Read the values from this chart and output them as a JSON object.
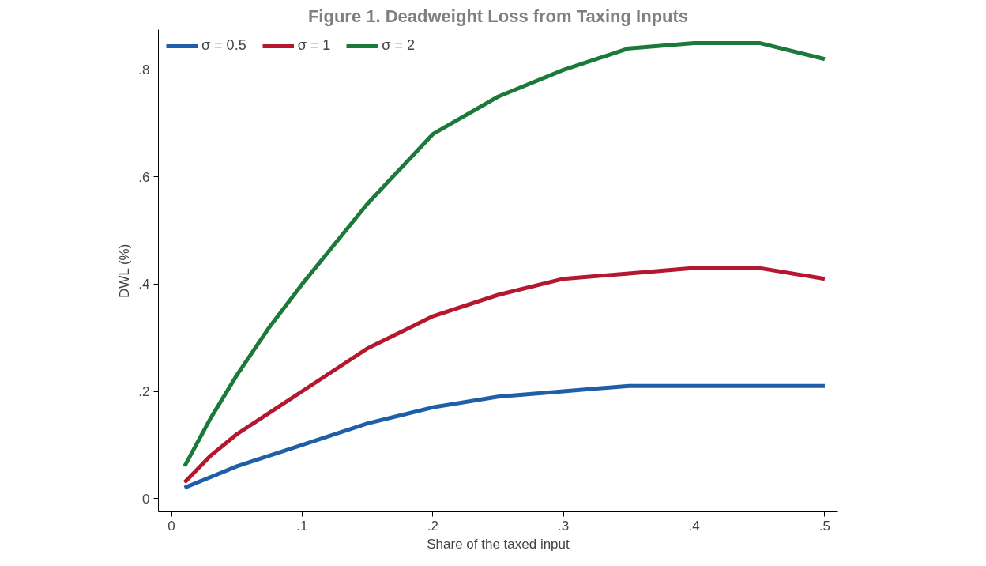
{
  "chart_data": {
    "type": "line",
    "title": "Figure 1. Deadweight Loss from Taxing Inputs",
    "xlabel": "Share of the taxed input",
    "ylabel": "DWL (%)",
    "x": [
      0.01,
      0.03,
      0.05,
      0.075,
      0.1,
      0.15,
      0.2,
      0.25,
      0.3,
      0.35,
      0.4,
      0.45,
      0.5
    ],
    "series": [
      {
        "name": "σ = 0.5",
        "color": "#1f5fa8",
        "values": [
          0.02,
          0.04,
          0.06,
          0.08,
          0.1,
          0.14,
          0.17,
          0.19,
          0.2,
          0.21,
          0.21,
          0.21,
          0.21
        ]
      },
      {
        "name": "σ = 1",
        "color": "#b5172f",
        "values": [
          0.03,
          0.08,
          0.12,
          0.16,
          0.2,
          0.28,
          0.34,
          0.38,
          0.41,
          0.42,
          0.43,
          0.43,
          0.41
        ]
      },
      {
        "name": "σ = 2",
        "color": "#1b7a3a",
        "values": [
          0.06,
          0.15,
          0.23,
          0.32,
          0.4,
          0.55,
          0.68,
          0.75,
          0.8,
          0.84,
          0.85,
          0.85,
          0.82
        ]
      }
    ],
    "xlim": [
      -0.01,
      0.51
    ],
    "ylim": [
      -0.025,
      0.875
    ],
    "xticks": [
      0,
      {
        "value": 0.1,
        "label": ".1"
      },
      {
        "value": 0.2,
        "label": ".2"
      },
      {
        "value": 0.3,
        "label": ".3"
      },
      {
        "value": 0.4,
        "label": ".4"
      },
      {
        "value": 0.5,
        "label": ".5"
      }
    ],
    "yticks": [
      0,
      {
        "value": 0.2,
        "label": ".2"
      },
      {
        "value": 0.4,
        "label": ".4"
      },
      {
        "value": 0.6,
        "label": ".6"
      },
      {
        "value": 0.8,
        "label": ".8"
      }
    ],
    "grid": false,
    "legend": "top left",
    "line_style": "solid",
    "marker": "none"
  }
}
